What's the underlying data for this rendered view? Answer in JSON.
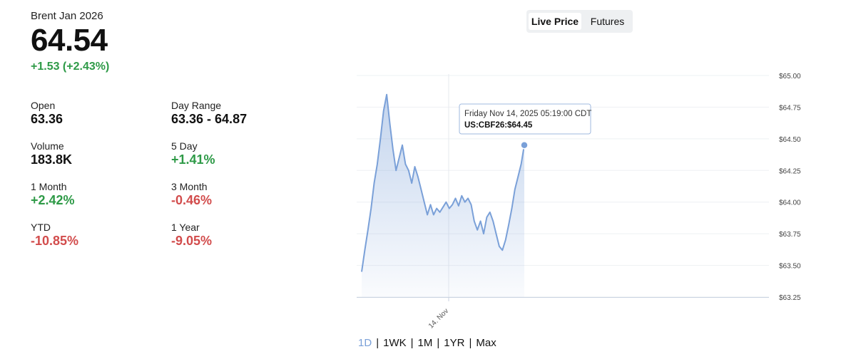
{
  "quote": {
    "title": "Brent Jan 2026",
    "price": "64.54",
    "change": "+1.53 (+2.43%)"
  },
  "stats": [
    {
      "label": "Open",
      "value": "63.36",
      "trend": "neutral"
    },
    {
      "label": "Day Range",
      "value": "63.36 - 64.87",
      "trend": "neutral"
    },
    {
      "label": "Volume",
      "value": "183.8K",
      "trend": "neutral"
    },
    {
      "label": "5 Day",
      "value": "+1.41%",
      "trend": "up"
    },
    {
      "label": "1 Month",
      "value": "+2.42%",
      "trend": "up"
    },
    {
      "label": "3 Month",
      "value": "-0.46%",
      "trend": "down"
    },
    {
      "label": "YTD",
      "value": "-10.85%",
      "trend": "down"
    },
    {
      "label": "1 Year",
      "value": "-9.05%",
      "trend": "down"
    }
  ],
  "toggle": {
    "live_label": "Live Price",
    "futures_label": "Futures",
    "selected": "live"
  },
  "ranges": {
    "d1": "1D",
    "wk": "1WK",
    "m1": "1M",
    "yr": "1YR",
    "max": "Max",
    "separator": "|",
    "selected": "1D"
  },
  "tooltip": {
    "time": "Friday Nov 14, 2025 05:19:00 CDT",
    "value": "US:CBF26:$64.45"
  },
  "colors": {
    "up": "#2e9a47",
    "down": "#d24c4c",
    "line": "#7aa0d8"
  },
  "chart_data": {
    "type": "area",
    "title": "",
    "xlabel": "",
    "ylabel": "",
    "x_tick_labels": [
      "14. Nov"
    ],
    "y_tick_labels": [
      "$65.00",
      "$64.75",
      "$64.50",
      "$64.25",
      "$64.00",
      "$63.75",
      "$63.50",
      "$63.25"
    ],
    "ylim": [
      63.25,
      65.0
    ],
    "grid": true,
    "legend": "none",
    "series": [
      {
        "values": [
          63.45,
          63.62,
          63.78,
          63.95,
          64.15,
          64.3,
          64.5,
          64.72,
          64.85,
          64.62,
          64.42,
          64.25,
          64.35,
          64.45,
          64.3,
          64.25,
          64.15,
          64.28,
          64.2,
          64.1,
          64.0,
          63.9,
          63.98,
          63.9,
          63.95,
          63.92,
          63.96,
          64.0,
          63.95,
          63.98,
          64.03,
          63.97,
          64.05,
          64.0,
          64.03,
          63.98,
          63.85,
          63.78,
          63.85,
          63.75,
          63.88,
          63.92,
          63.85,
          63.75,
          63.65,
          63.62,
          63.7,
          63.82,
          63.95,
          64.1,
          64.2,
          64.3,
          64.45
        ]
      }
    ]
  }
}
